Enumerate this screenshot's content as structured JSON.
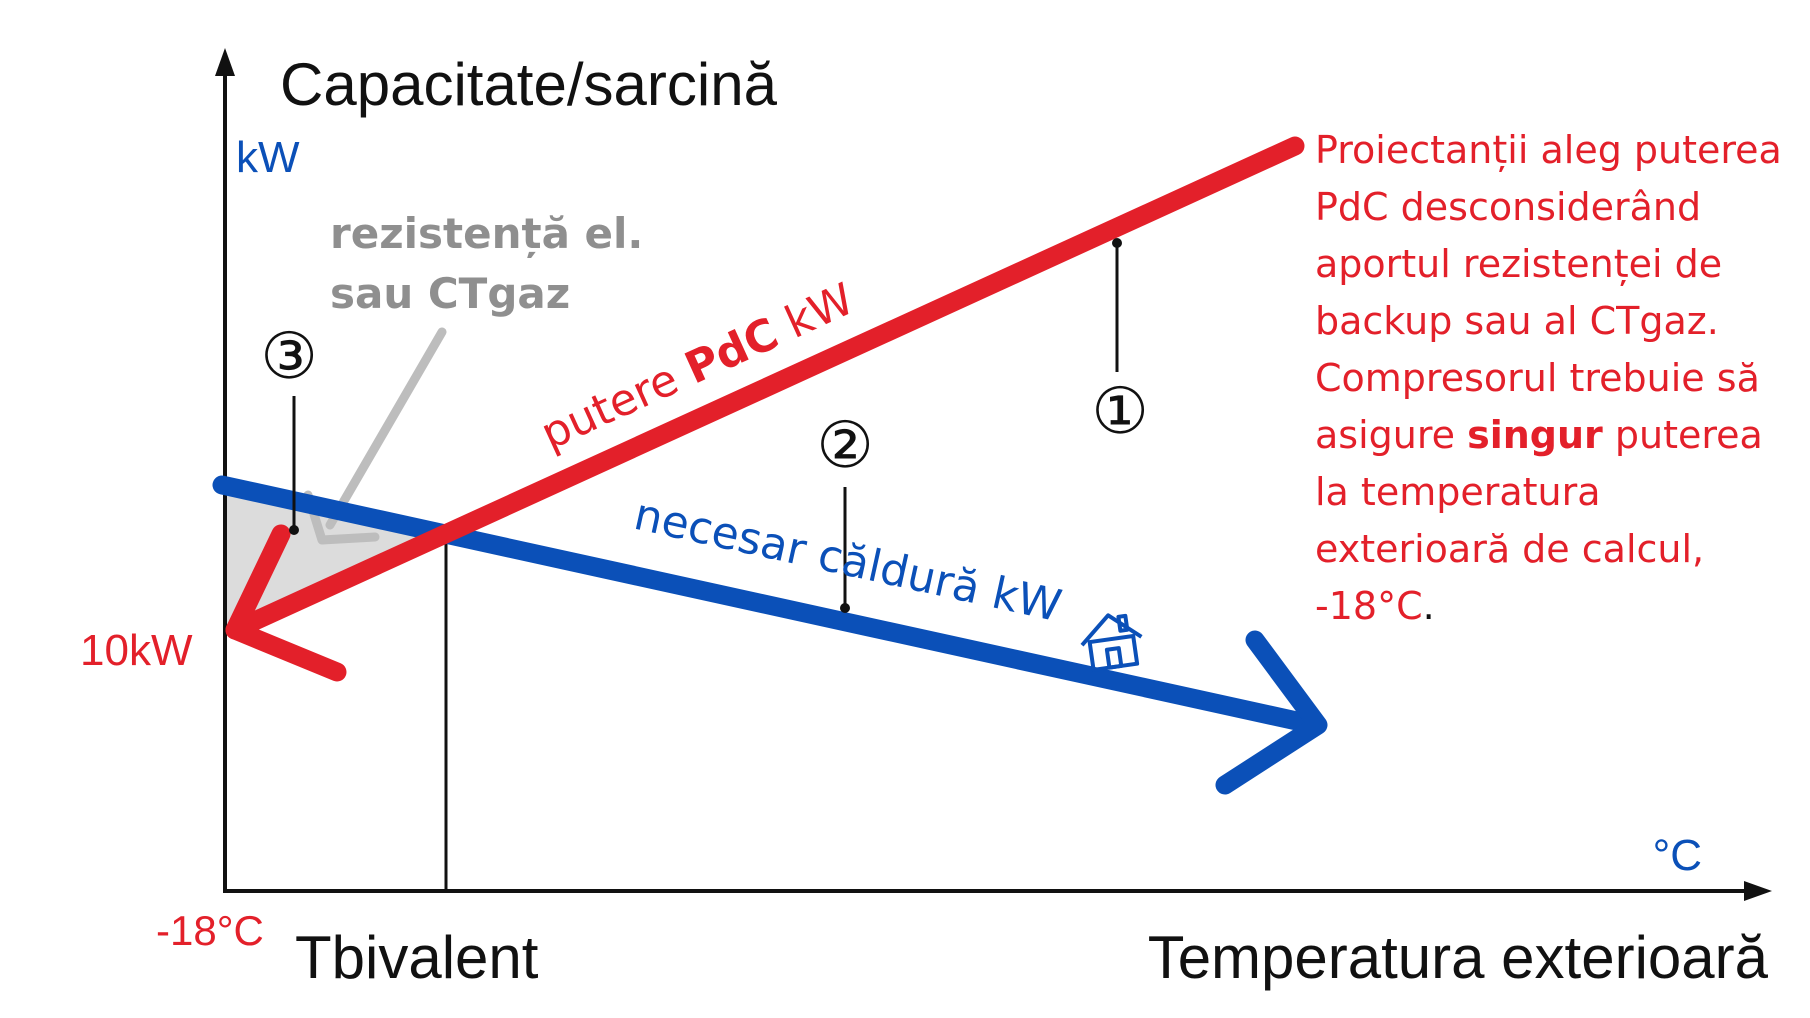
{
  "axes": {
    "y_title": "Capacitate/sarcină",
    "y_unit": "kW",
    "x_title": "Temperatura exterioară",
    "x_unit": "°C",
    "x_start": "-18°C",
    "bivalent": "Tbivalent",
    "y_value": "10kW"
  },
  "heat_pump_line": {
    "label_pre": "putere ",
    "label_bold": "PdC",
    "label_post": " kW",
    "color": "#e3202a"
  },
  "demand_line": {
    "label": "necesar căldură kW",
    "icon": "house-icon",
    "color": "#0b50b8"
  },
  "backup": {
    "line1": "rezistență el.",
    "line2": "sau CTgaz",
    "color": "#8f8f8f"
  },
  "markers": [
    "①",
    "②",
    "③"
  ],
  "note": {
    "l1": "Proiectanții aleg puterea",
    "l2": "PdC desconsiderând",
    "l3": "aportul rezistenței de",
    "l4": "backup sau al CTgaz.",
    "l5": "Compresorul trebuie să",
    "l6_pre": "asigure ",
    "l6_bold": "singur",
    "l6_post": " puterea",
    "l7": "la temperatura",
    "l8": "exterioară de calcul,",
    "l9": "-18°C",
    "l9_tail": "."
  }
}
